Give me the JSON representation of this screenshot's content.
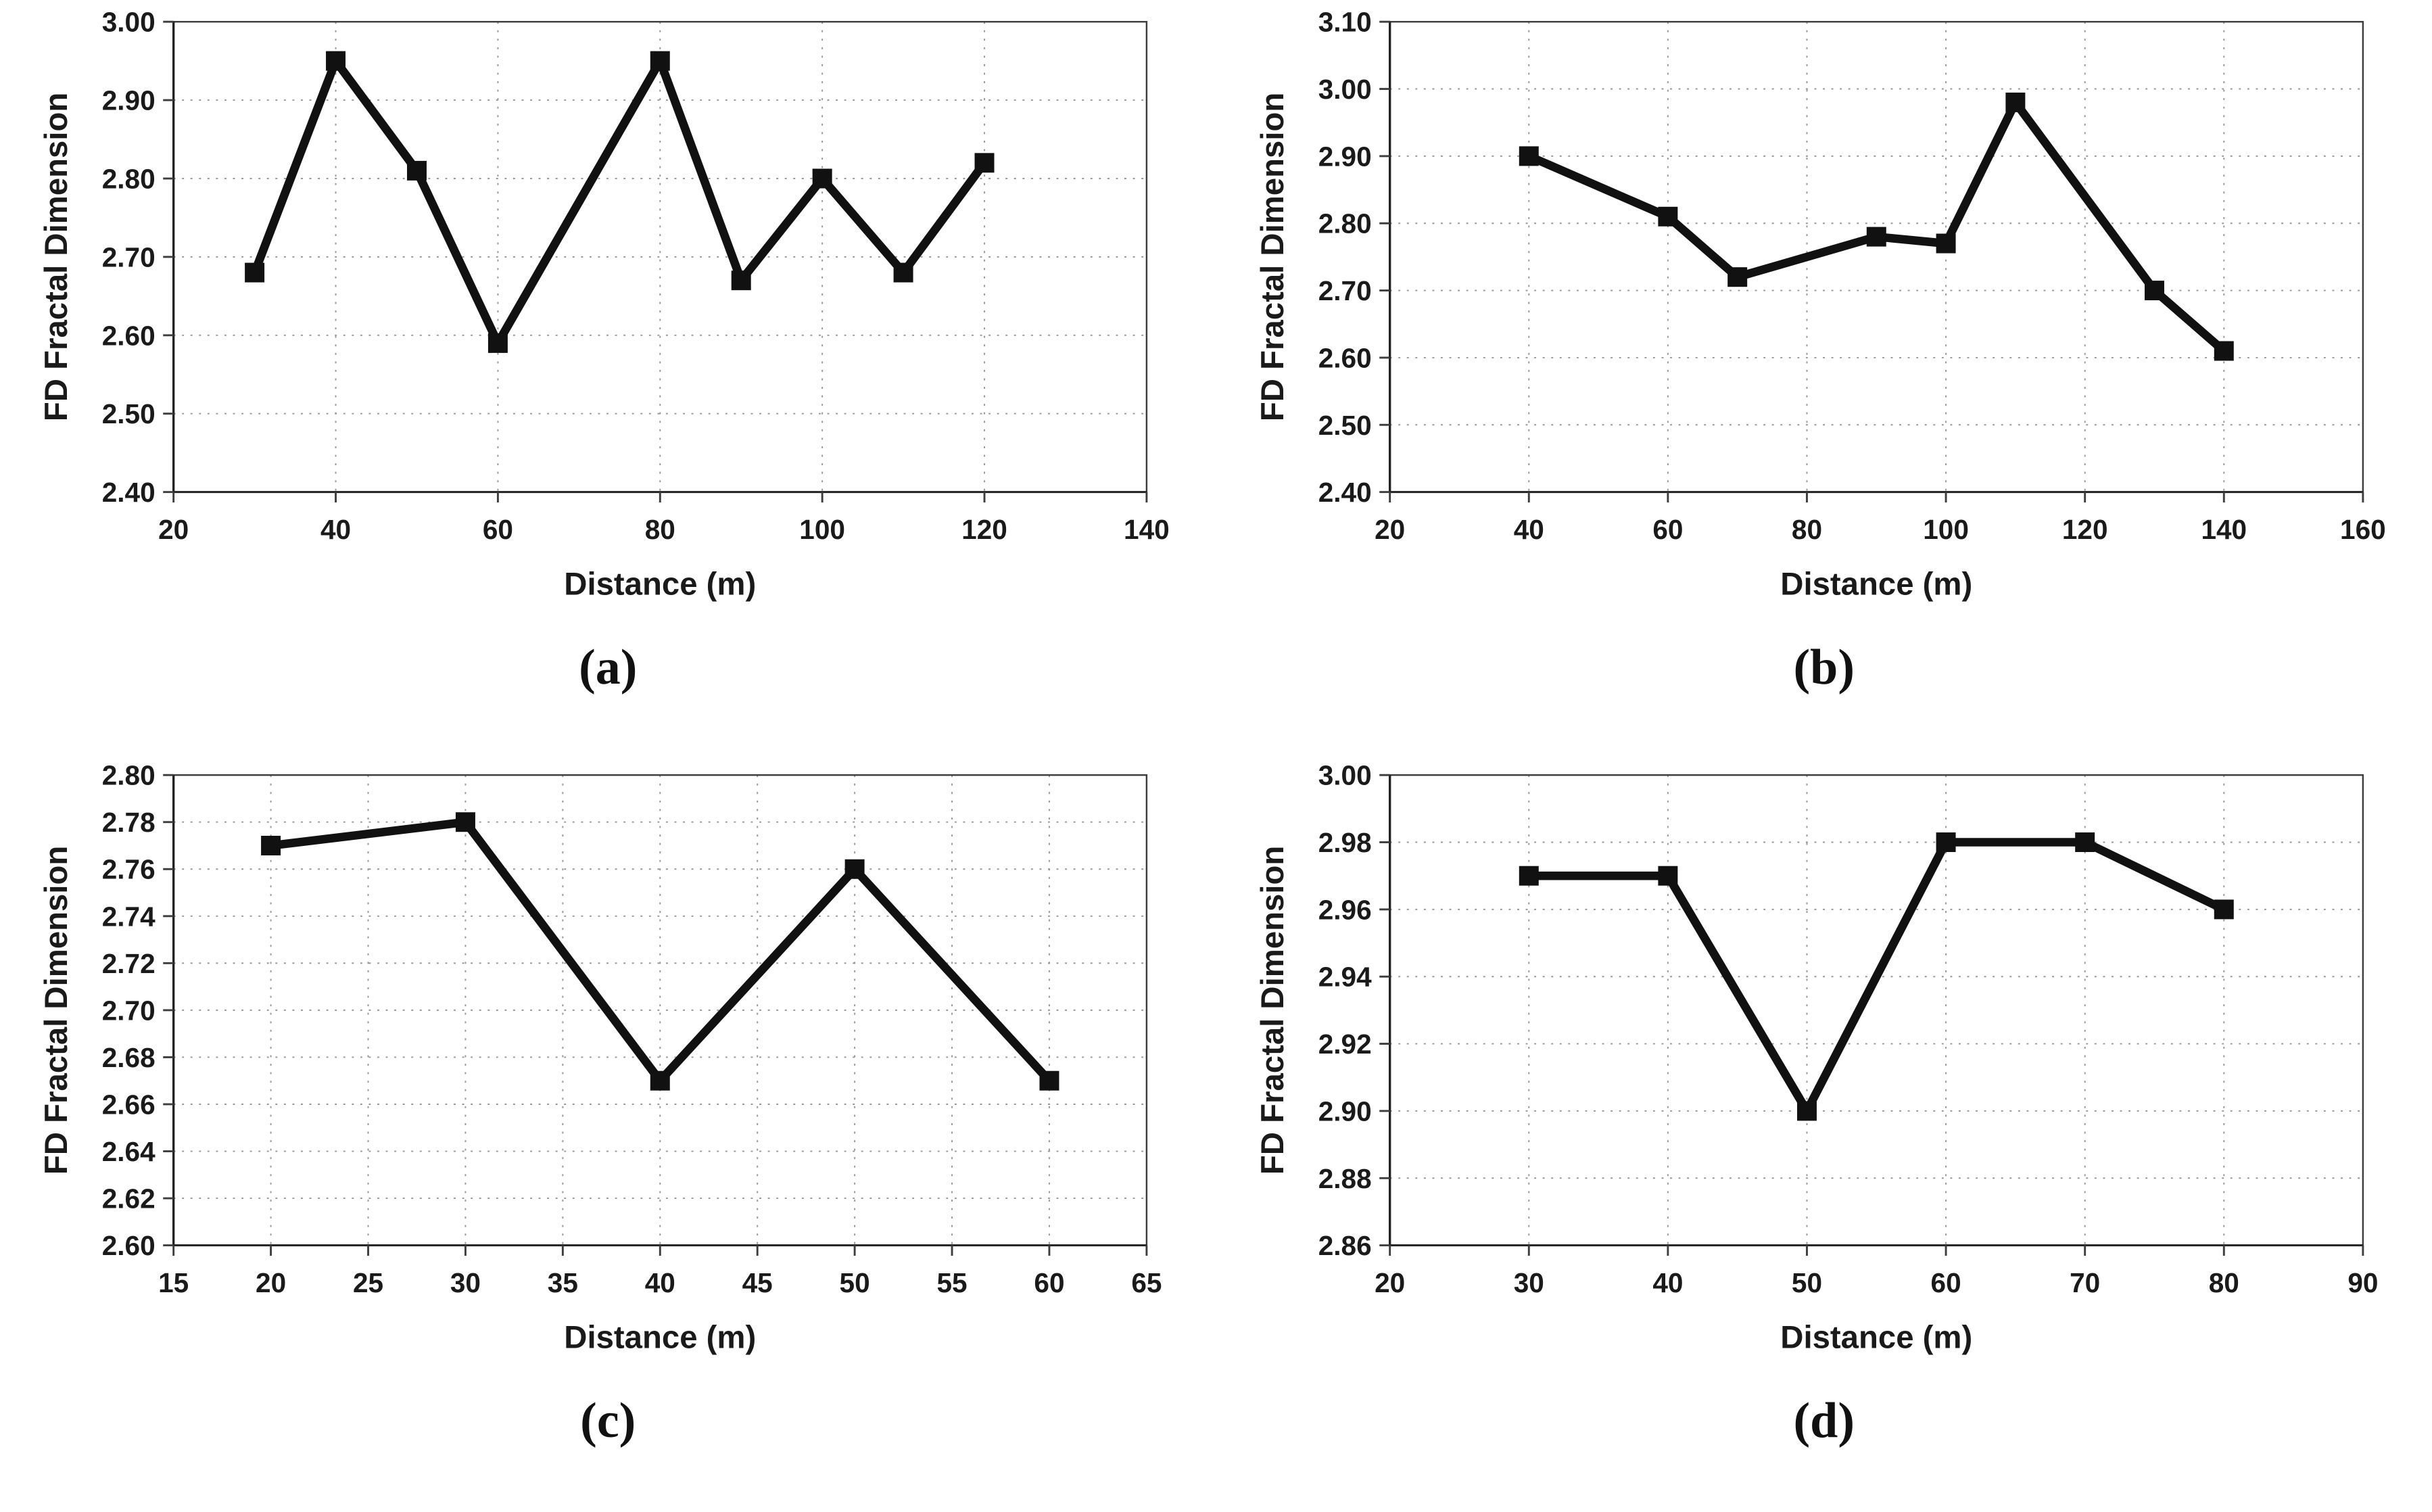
{
  "style": {
    "background": "#ffffff",
    "line_color": "#111111",
    "marker_color": "#111111",
    "grid_color": "#969696",
    "frame_color": "#3d3d3d",
    "tick_color": "#3d3d3d",
    "text_color": "#1a1a1a"
  },
  "chart_data": [
    {
      "id": "a",
      "type": "line",
      "caption": "(a)",
      "xlabel": "Distance (m)",
      "ylabel": "FD Fractal Dimension",
      "xlim": [
        20,
        140
      ],
      "ylim": [
        2.4,
        3.0
      ],
      "xticks": [
        20,
        40,
        60,
        80,
        100,
        120,
        140
      ],
      "xtick_labels": [
        "20",
        "40",
        "60",
        "80",
        "100",
        "120",
        "140"
      ],
      "yticks": [
        2.4,
        2.5,
        2.6,
        2.7,
        2.8,
        2.9,
        3.0
      ],
      "ytick_labels": [
        "2.40",
        "2.50",
        "2.60",
        "2.70",
        "2.80",
        "2.90",
        "3.00"
      ],
      "grid": true,
      "legend": "none",
      "x": [
        30,
        40,
        50,
        60,
        80,
        90,
        100,
        110,
        120
      ],
      "y": [
        2.68,
        2.95,
        2.81,
        2.59,
        2.95,
        2.67,
        2.8,
        2.68,
        2.82
      ]
    },
    {
      "id": "b",
      "type": "line",
      "caption": "(b)",
      "xlabel": "Distance (m)",
      "ylabel": "FD Fractal Dimension",
      "xlim": [
        20,
        160
      ],
      "ylim": [
        2.4,
        3.1
      ],
      "xticks": [
        20,
        40,
        60,
        80,
        100,
        120,
        140,
        160
      ],
      "xtick_labels": [
        "20",
        "40",
        "60",
        "80",
        "100",
        "120",
        "140",
        "160"
      ],
      "yticks": [
        2.4,
        2.5,
        2.6,
        2.7,
        2.8,
        2.9,
        3.0,
        3.1
      ],
      "ytick_labels": [
        "2.40",
        "2.50",
        "2.60",
        "2.70",
        "2.80",
        "2.90",
        "3.00",
        "3.10"
      ],
      "grid": true,
      "legend": "none",
      "x": [
        40,
        60,
        70,
        90,
        100,
        110,
        130,
        140
      ],
      "y": [
        2.9,
        2.81,
        2.72,
        2.78,
        2.77,
        2.98,
        2.7,
        2.61
      ]
    },
    {
      "id": "c",
      "type": "line",
      "caption": "(c)",
      "xlabel": "Distance (m)",
      "ylabel": "FD Fractal Dimension",
      "xlim": [
        15,
        65
      ],
      "ylim": [
        2.6,
        2.8
      ],
      "xticks": [
        15,
        20,
        25,
        30,
        35,
        40,
        45,
        50,
        55,
        60,
        65
      ],
      "xtick_labels": [
        "15",
        "20",
        "25",
        "30",
        "35",
        "40",
        "45",
        "50",
        "55",
        "60",
        "65"
      ],
      "yticks": [
        2.6,
        2.62,
        2.64,
        2.66,
        2.68,
        2.7,
        2.72,
        2.74,
        2.76,
        2.78,
        2.8
      ],
      "ytick_labels": [
        "2.60",
        "2.62",
        "2.64",
        "2.66",
        "2.68",
        "2.70",
        "2.72",
        "2.74",
        "2.76",
        "2.78",
        "2.80"
      ],
      "grid": true,
      "legend": "none",
      "x": [
        20,
        30,
        40,
        50,
        60
      ],
      "y": [
        2.77,
        2.78,
        2.67,
        2.76,
        2.67
      ]
    },
    {
      "id": "d",
      "type": "line",
      "caption": "(d)",
      "xlabel": "Distance (m)",
      "ylabel": "FD Fractal Dimension",
      "xlim": [
        20,
        90
      ],
      "ylim": [
        2.86,
        3.0
      ],
      "xticks": [
        20,
        30,
        40,
        50,
        60,
        70,
        80,
        90
      ],
      "xtick_labels": [
        "20",
        "30",
        "40",
        "50",
        "60",
        "70",
        "80",
        "90"
      ],
      "yticks": [
        2.86,
        2.88,
        2.9,
        2.92,
        2.94,
        2.96,
        2.98,
        3.0
      ],
      "ytick_labels": [
        "2.86",
        "2.88",
        "2.90",
        "2.92",
        "2.94",
        "2.96",
        "2.98",
        "3.00"
      ],
      "grid": true,
      "legend": "none",
      "x": [
        30,
        40,
        50,
        60,
        70,
        80
      ],
      "y": [
        2.97,
        2.97,
        2.9,
        2.98,
        2.98,
        2.96
      ]
    }
  ]
}
